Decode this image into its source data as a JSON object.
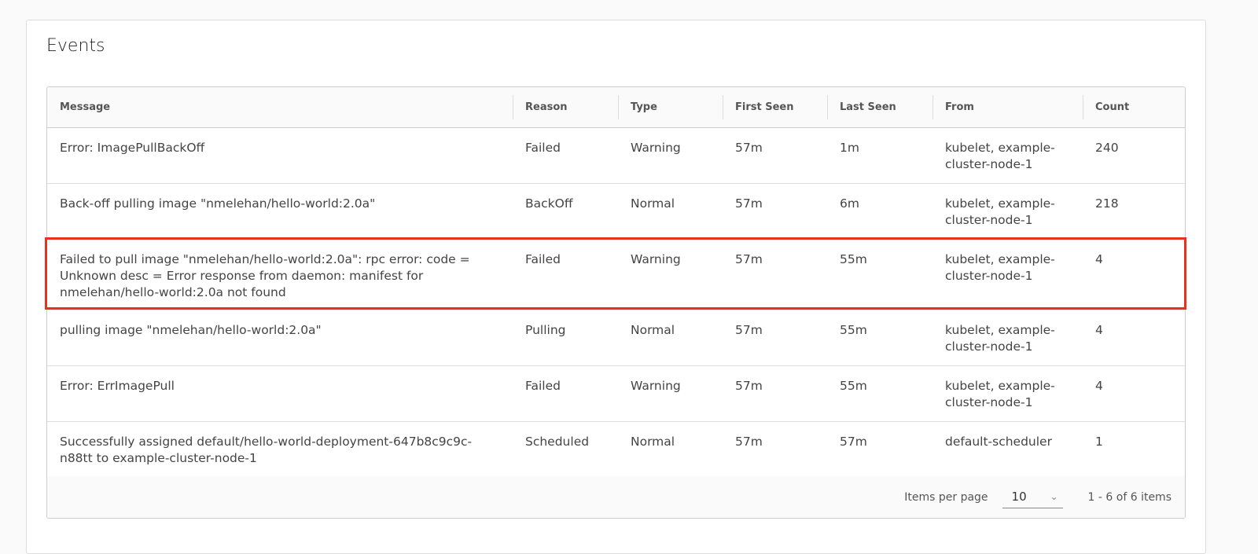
{
  "title": "Events",
  "columns": [
    "Message",
    "Reason",
    "Type",
    "First Seen",
    "Last Seen",
    "From",
    "Count"
  ],
  "rows": [
    [
      "Error: ImagePullBackOff",
      "Failed",
      "Warning",
      "57m",
      "1m",
      "kubelet, example-cluster-node-1",
      "240"
    ],
    [
      "Back-off pulling image \"nmelehan/hello-world:2.0a\"",
      "BackOff",
      "Normal",
      "57m",
      "6m",
      "kubelet, example-cluster-node-1",
      "218"
    ],
    [
      "Failed to pull image \"nmelehan/hello-world:2.0a\": rpc error: code = Unknown desc = Error response from daemon: manifest for nmelehan/hello-world:2.0a not found",
      "Failed",
      "Warning",
      "57m",
      "55m",
      "kubelet, example-cluster-node-1",
      "4"
    ],
    [
      "pulling image \"nmelehan/hello-world:2.0a\"",
      "Pulling",
      "Normal",
      "57m",
      "55m",
      "kubelet, example-cluster-node-1",
      "4"
    ],
    [
      "Error: ErrImagePull",
      "Failed",
      "Warning",
      "57m",
      "55m",
      "kubelet, example-cluster-node-1",
      "4"
    ],
    [
      "Successfully assigned default/hello-world-deployment-647b8c9c9c-n88tt to example-cluster-node-1",
      "Scheduled",
      "Normal",
      "57m",
      "57m",
      "default-scheduler",
      "1"
    ]
  ],
  "highlighted_row": 2,
  "highlight_color": "#e8321e",
  "footer": {
    "items_per_page_label": "Items per page",
    "items_per_page": "10",
    "range": "1 - 6 of 6 items"
  }
}
